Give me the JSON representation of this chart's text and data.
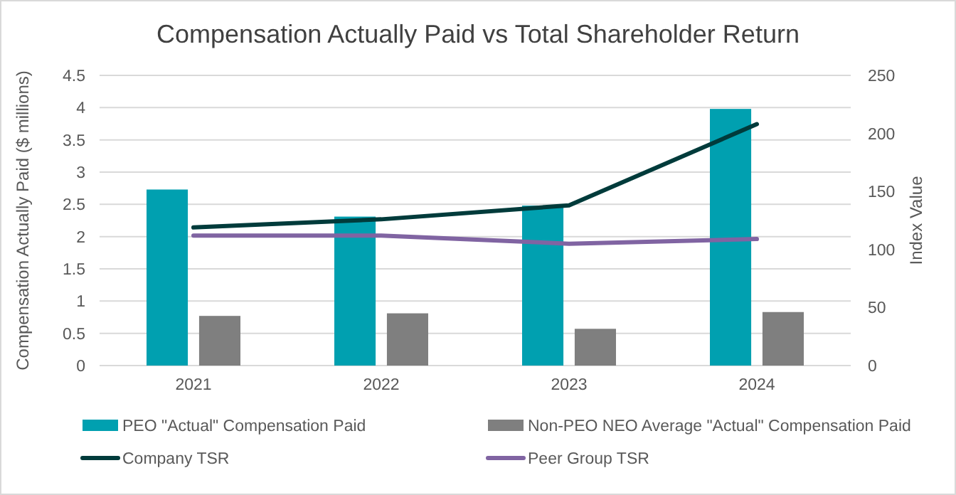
{
  "chart_data": {
    "type": "bar",
    "title": "Compensation Actually Paid vs Total Shareholder Return",
    "ylabel": "Compensation Actually Paid ($ millions)",
    "y2label": "Index Value",
    "categories": [
      "2021",
      "2022",
      "2023",
      "2024"
    ],
    "series": [
      {
        "name": "PEO \"Actual\" Compensation Paid",
        "color": "#00a0b0",
        "values": [
          2.73,
          2.31,
          2.48,
          3.98
        ]
      },
      {
        "name": "Non-PEO NEO Average \"Actual\" Compensation Paid",
        "color": "#7f7f7f",
        "values": [
          0.77,
          0.81,
          0.57,
          0.83
        ]
      },
      {
        "name": "Company TSR",
        "type": "line",
        "axis": "y2",
        "color": "#003b3b",
        "values": [
          119,
          126,
          138,
          208
        ]
      },
      {
        "name": "Peer Group TSR",
        "type": "line",
        "axis": "y2",
        "color": "#8064a2",
        "values": [
          112,
          112,
          105,
          109
        ]
      }
    ],
    "ylim": [
      0,
      4.5
    ],
    "yticks": [
      0,
      0.5,
      1,
      1.5,
      2,
      2.5,
      3,
      3.5,
      4,
      4.5
    ],
    "y2lim": [
      0,
      250
    ],
    "y2ticks": [
      0,
      50,
      100,
      150,
      200,
      250
    ],
    "grid": "y",
    "legend": "bottom"
  }
}
